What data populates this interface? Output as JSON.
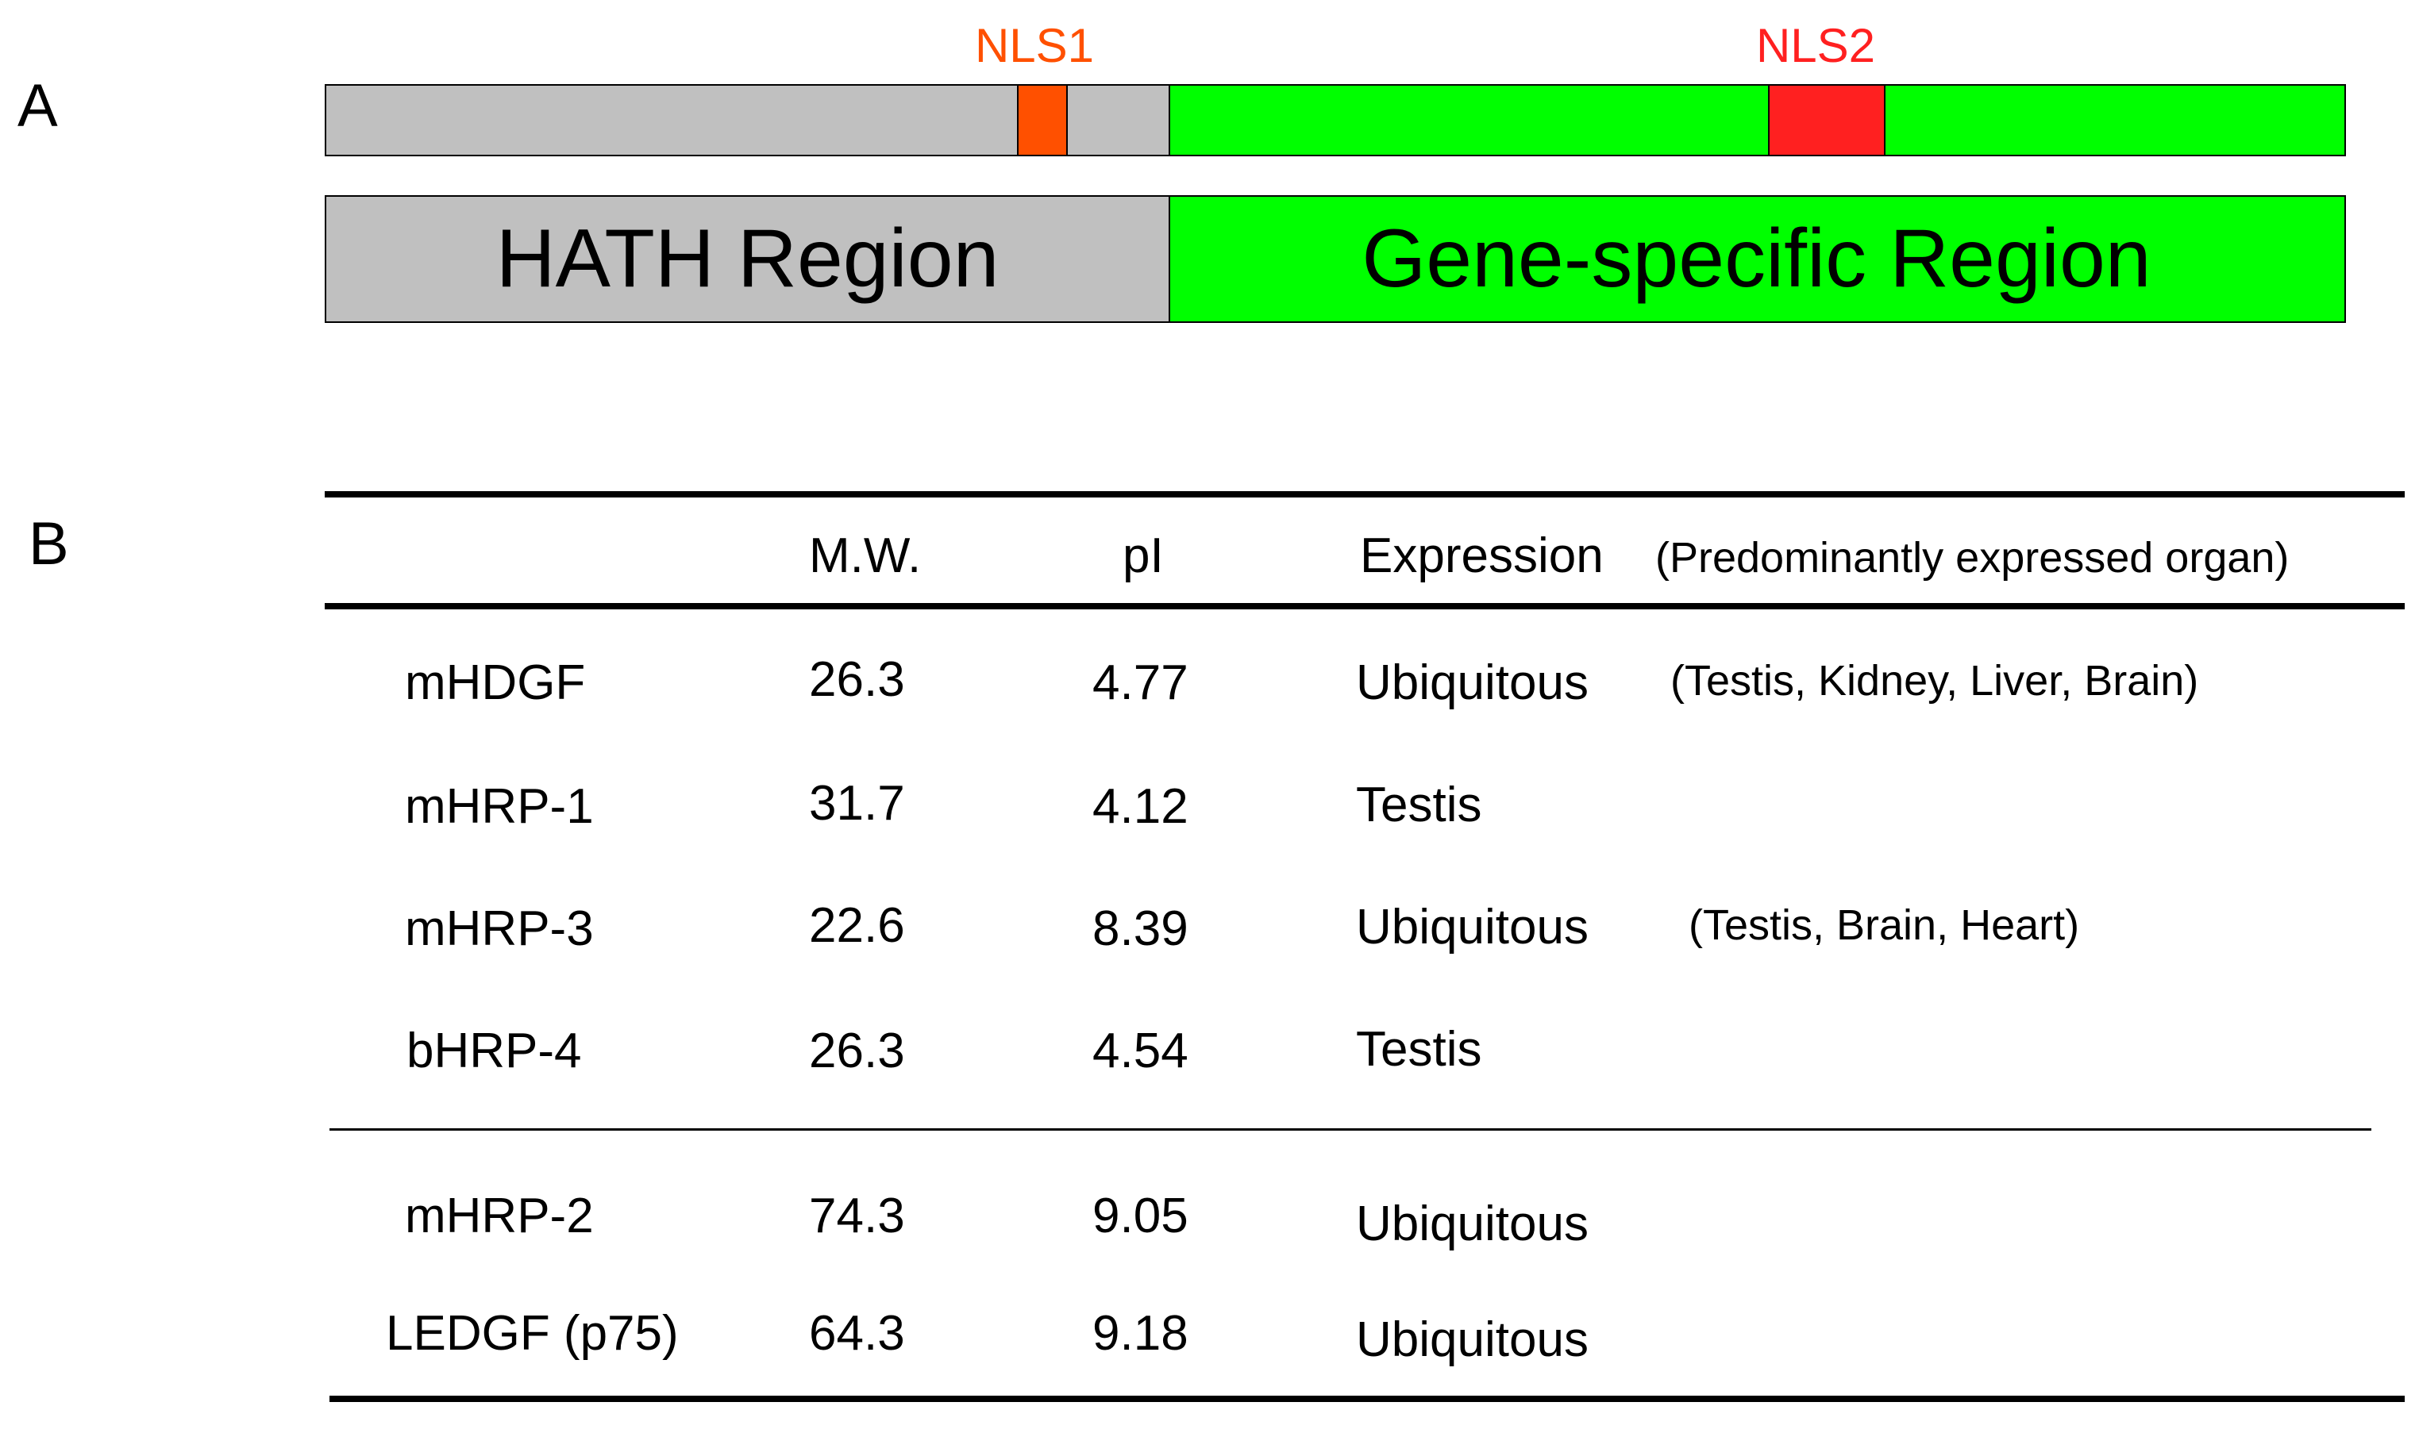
{
  "panel_a": {
    "letter": "A",
    "nls1_label": "NLS1",
    "nls2_label": "NLS2",
    "hath_region_label": "HATH Region",
    "gene_specific_region_label": "Gene-specific Region",
    "colors": {
      "hath": "#c0c0c0",
      "gene_specific": "#00ff00",
      "nls1": "#ff5000",
      "nls2": "#ff2020",
      "nls1_text": "#ff5000",
      "nls2_text": "#ff2020"
    }
  },
  "panel_b": {
    "letter": "B",
    "headers": {
      "mw": "M.W.",
      "pi": "pI",
      "expression": "Expression",
      "organ_note": "(Predominantly  expressed  organ)"
    },
    "rows": [
      {
        "name": "mHDGF",
        "mw": "26.3",
        "pi": "4.77",
        "expression": "Ubiquitous",
        "organs": "(Testis,  Kidney,  Liver,  Brain)"
      },
      {
        "name": "mHRP-1",
        "mw": "31.7",
        "pi": "4.12",
        "expression": "Testis",
        "organs": ""
      },
      {
        "name": "mHRP-3",
        "mw": "22.6",
        "pi": "8.39",
        "expression": "Ubiquitous",
        "organs": "(Testis,  Brain,  Heart)"
      },
      {
        "name": "bHRP-4",
        "mw": "26.3",
        "pi": "4.54",
        "expression": "Testis",
        "organs": ""
      },
      {
        "name": "mHRP-2",
        "mw": "74.3",
        "pi": "9.05",
        "expression": "Ubiquitous",
        "organs": ""
      },
      {
        "name": "LEDGF (p75)",
        "mw": "64.3",
        "pi": "9.18",
        "expression": "Ubiquitous",
        "organs": ""
      }
    ]
  }
}
